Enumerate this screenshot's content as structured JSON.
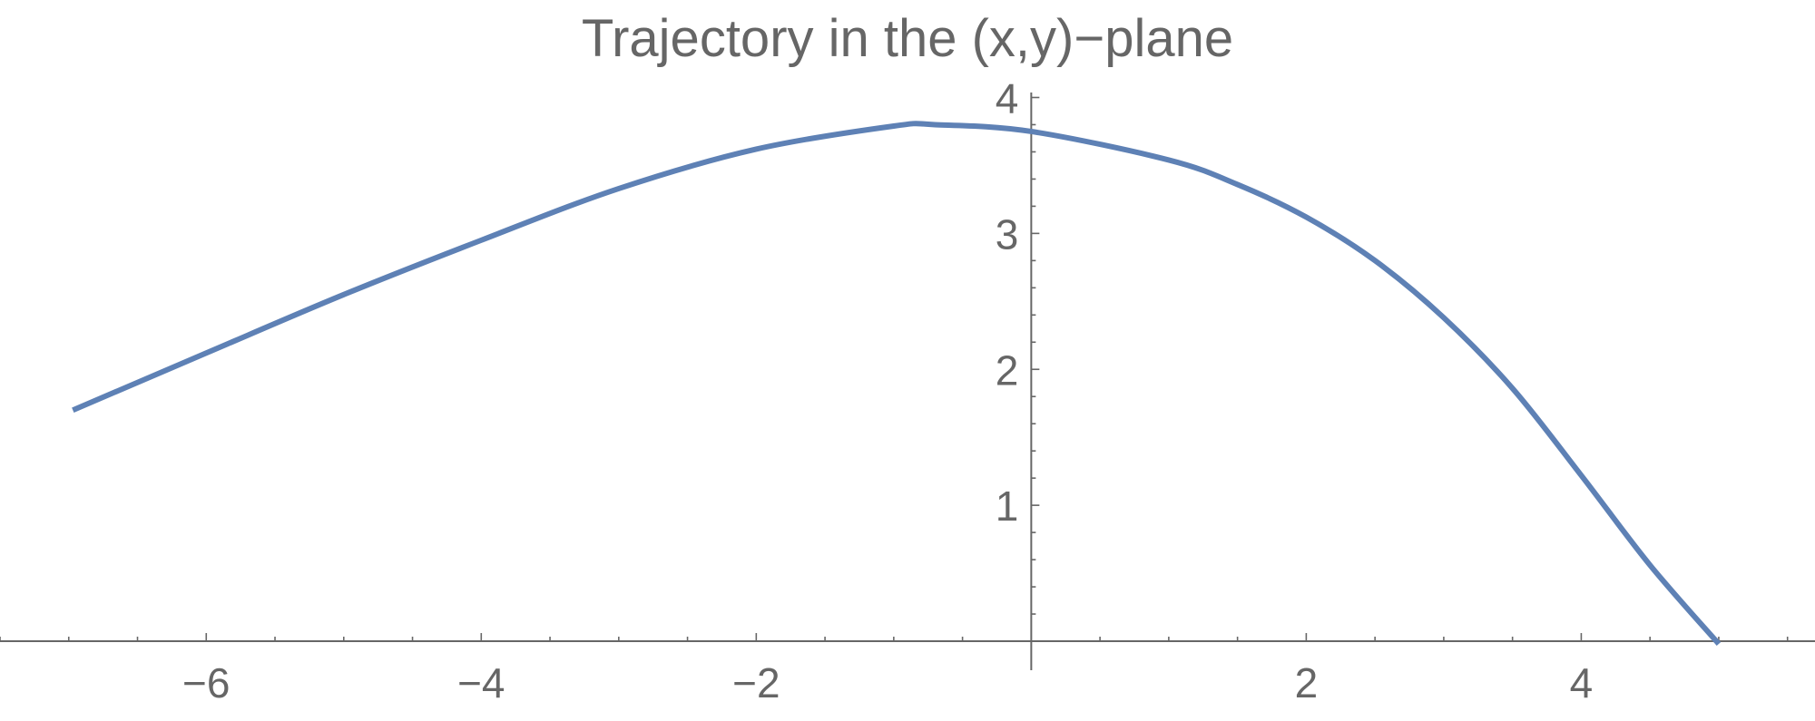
{
  "chart_data": {
    "type": "line",
    "title": "Trajectory in the (x,y)−plane",
    "xlabel": "",
    "ylabel": "",
    "xlim": [
      -7.5,
      5.7
    ],
    "ylim": [
      -0.22,
      4.05
    ],
    "x_ticks": [
      -6,
      -4,
      -2,
      2,
      4
    ],
    "x_tick_labels": [
      "−6",
      "−4",
      "−2",
      "2",
      "4"
    ],
    "y_ticks": [
      1,
      2,
      3,
      4
    ],
    "y_tick_labels": [
      "1",
      "2",
      "3",
      "4"
    ],
    "x_minor_step": 0.5,
    "y_minor_step": 0.2,
    "grid": false,
    "series": [
      {
        "color": "#5E81B5",
        "x": [
          -6.97,
          -6.0,
          -5.0,
          -4.0,
          -3.0,
          -2.0,
          -1.0,
          -0.7,
          0.0,
          1.0,
          1.5,
          2.0,
          2.5,
          3.0,
          3.5,
          4.0,
          4.5,
          5.0
        ],
        "y": [
          1.7,
          2.12,
          2.55,
          2.95,
          3.33,
          3.62,
          3.79,
          3.8,
          3.75,
          3.54,
          3.36,
          3.12,
          2.8,
          2.38,
          1.86,
          1.22,
          0.56,
          -0.02
        ]
      }
    ]
  }
}
